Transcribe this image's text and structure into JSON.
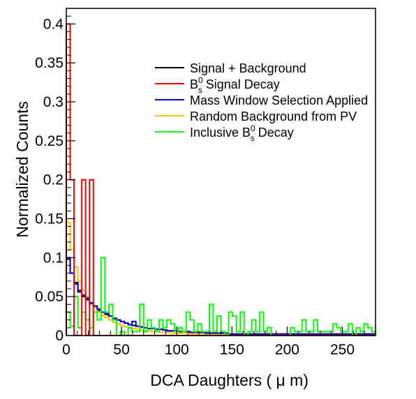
{
  "chart_data": {
    "type": "histogram",
    "xlabel": "DCA Daughters ( μ m)",
    "ylabel": "Normalized Counts",
    "xlim": [
      0,
      280
    ],
    "ylim": [
      0,
      0.42
    ],
    "x_ticks": [
      0,
      50,
      100,
      150,
      200,
      250
    ],
    "y_ticks": [
      0,
      0.05,
      0.1,
      0.15,
      0.2,
      0.25,
      0.3,
      0.35,
      0.4
    ],
    "x_tick_labels": [
      "0",
      "50",
      "100",
      "150",
      "200",
      "250"
    ],
    "y_tick_labels": [
      "0",
      "0.05",
      "0.1",
      "0.15",
      "0.2",
      "0.25",
      "0.3",
      "0.35",
      "0.4"
    ],
    "bin_width": 3.5,
    "grid": false,
    "legend_position": "top-right",
    "legend": [
      {
        "label": "Signal + Background",
        "mainText": "Signal + Background",
        "subText": "",
        "restText": "",
        "color": "#000000"
      },
      {
        "label": "B_s^0 Signal Decay",
        "mainText": "B",
        "subText": "s",
        "supText": "0",
        "restText": " Signal Decay",
        "color": "#ff0000"
      },
      {
        "label": "Mass Window Selection Applied",
        "mainText": "Mass Window Selection Applied",
        "subText": "",
        "restText": "",
        "color": "#0000cc"
      },
      {
        "label": "Random Background from PV",
        "mainText": "Random Background from PV",
        "subText": "",
        "restText": "",
        "color": "#ffc000"
      },
      {
        "label": "Inclusive B_s^0 Decay",
        "mainText": "Inclusive B",
        "subText": "s",
        "supText": "0",
        "restText": " Decay",
        "color": "#00ff00"
      }
    ],
    "series": [
      {
        "name": "Signal + Background",
        "color": "#000000",
        "values": [
          0.098,
          0.08,
          0.068,
          0.056,
          0.05,
          0.046,
          0.041,
          0.036,
          0.032,
          0.03,
          0.027,
          0.025,
          0.022,
          0.02,
          0.018,
          0.016,
          0.014,
          0.013,
          0.012,
          0.011,
          0.01,
          0.009,
          0.009,
          0.008,
          0.008,
          0.007,
          0.006,
          0.006,
          0.006,
          0.005,
          0.005,
          0.005,
          0.004,
          0.004,
          0.004,
          0.004,
          0.003,
          0.003,
          0.003,
          0.003,
          0.003,
          0.003,
          0.002,
          0.002,
          0.002,
          0.002,
          0.002,
          0.002,
          0.002,
          0.002,
          0.002,
          0.002,
          0.002,
          0.002,
          0.002,
          0.002,
          0.002,
          0.002,
          0.002,
          0.002,
          0.002,
          0.002,
          0.002,
          0.002,
          0.002,
          0.002,
          0.002,
          0.002,
          0.002,
          0.002,
          0.002,
          0.002,
          0.002,
          0.002,
          0.002,
          0.002,
          0.002,
          0.002,
          0.002,
          0.002
        ]
      },
      {
        "name": "Random Background from PV",
        "color": "#ffc000",
        "values": [
          0.145,
          0.11,
          0.088,
          0.07,
          0.058,
          0.05,
          0.042,
          0.036,
          0.03,
          0.026,
          0.023,
          0.02,
          0.017,
          0.015,
          0.013,
          0.011,
          0.01,
          0.009,
          0.008,
          0.007,
          0.006,
          0.006,
          0.005,
          0.005,
          0.004,
          0.004,
          0.004,
          0.003,
          0.003,
          0.003,
          0.003,
          0.003,
          0.002,
          0.002,
          0.002,
          0.002,
          0.002,
          0.002,
          0.002,
          0.002,
          0.002,
          0.002,
          0.002,
          0.002,
          0.002,
          0.002,
          0.002,
          0.002,
          0.002,
          0.002,
          0.002,
          0.002,
          0.002,
          0.002,
          0.002,
          0.002,
          0.002,
          0.002,
          0.002,
          0.002,
          0.002,
          0.002,
          0.002,
          0.002,
          0.002,
          0.002,
          0.002,
          0.002,
          0.002,
          0.002,
          0.002,
          0.002,
          0.002,
          0.002,
          0.002,
          0.002,
          0.002,
          0.002,
          0.002,
          0.002
        ]
      },
      {
        "name": "Mass Window Selection Applied",
        "color": "#0000cc",
        "values": [
          0.1,
          0.08,
          0.066,
          0.058,
          0.052,
          0.048,
          0.042,
          0.038,
          0.034,
          0.03,
          0.028,
          0.025,
          0.022,
          0.02,
          0.018,
          0.016,
          0.014,
          0.018,
          0.012,
          0.011,
          0.01,
          0.009,
          0.009,
          0.008,
          0.008,
          0.007,
          0.006,
          0.006,
          0.006,
          0.005,
          0.005,
          0.005,
          0.004,
          0.004,
          0.004,
          0.004,
          0.003,
          0.003,
          0.003,
          0.003,
          0.003,
          0.003,
          0.002,
          0.002,
          0.002,
          0.002,
          0.002,
          0.002,
          0.002,
          0.002,
          0.002,
          0.002,
          0.002,
          0.002,
          0.002,
          0.002,
          0.002,
          0.002,
          0.002,
          0.002,
          0.002,
          0.002,
          0.002,
          0.002,
          0.002,
          0.002,
          0.002,
          0.002,
          0.002,
          0.002,
          0.002,
          0.002,
          0.002,
          0.002,
          0.002,
          0.002,
          0.002,
          0.002,
          0.002,
          0.002
        ]
      },
      {
        "name": "Inclusive B_s^0 Decay",
        "color": "#00ff00",
        "values": [
          0.03,
          0.012,
          0.05,
          0.01,
          0.03,
          0.02,
          0.01,
          0.03,
          0.02,
          0.1,
          0.03,
          0.04,
          0.02,
          0,
          0.005,
          0,
          0.01,
          0.005,
          0.005,
          0.04,
          0.005,
          0.02,
          0.01,
          0.005,
          0.02,
          0.01,
          0.02,
          0.015,
          0.005,
          0.01,
          0.005,
          0.03,
          0.02,
          0.005,
          0.015,
          0.005,
          0.005,
          0.04,
          0.005,
          0.025,
          0.005,
          0,
          0.03,
          0.025,
          0.005,
          0.03,
          0,
          0.005,
          0.02,
          0.005,
          0.03,
          0.005,
          0.01,
          0,
          0,
          0,
          0,
          0,
          0.01,
          0.005,
          0.005,
          0.02,
          0.005,
          0.005,
          0.02,
          0.005,
          0.005,
          0.005,
          0.005,
          0.015,
          0.01,
          0.005,
          0.005,
          0.015,
          0,
          0.01,
          0.005,
          0.015,
          0.01,
          0.005
        ]
      },
      {
        "name": "B_s^0 Signal Decay",
        "color": "#ff0000",
        "values": [
          0.4,
          0.2,
          0,
          0,
          0.2,
          0,
          0.2,
          0,
          0,
          0,
          0,
          0,
          0,
          0,
          0,
          0,
          0,
          0,
          0,
          0,
          0,
          0,
          0,
          0,
          0,
          0,
          0,
          0,
          0,
          0,
          0,
          0,
          0,
          0,
          0,
          0,
          0,
          0,
          0,
          0,
          0,
          0,
          0,
          0,
          0,
          0,
          0,
          0,
          0,
          0,
          0,
          0,
          0,
          0,
          0,
          0,
          0,
          0,
          0,
          0,
          0,
          0,
          0,
          0,
          0,
          0,
          0,
          0,
          0,
          0,
          0,
          0,
          0,
          0,
          0,
          0,
          0,
          0,
          0,
          0
        ]
      }
    ]
  }
}
